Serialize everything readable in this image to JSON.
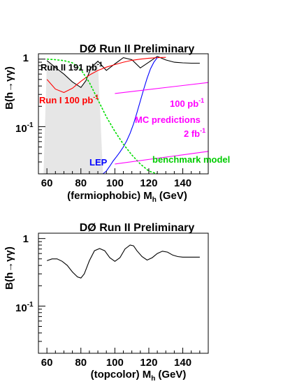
{
  "chart_data": [
    {
      "type": "line",
      "title": "DØ Run II Preliminary",
      "xlabel": "(fermiophobic) M",
      "xlabel_sub": "h",
      "xlabel_unit": "(GeV)",
      "ylabel": "B(h→γγ)",
      "xlim": [
        55,
        155
      ],
      "ylim": [
        0.02,
        1.2
      ],
      "yscale": "log",
      "xticks": [
        60,
        80,
        100,
        120,
        140
      ],
      "ytick_labels": [
        "1",
        "10",
        "-1"
      ],
      "grid": false,
      "series": [
        {
          "name": "Run II 191 pb",
          "name_sup": "-1",
          "color": "#000000",
          "x": [
            60,
            65,
            70,
            75,
            80,
            83,
            86,
            90,
            95,
            100,
            105,
            110,
            115,
            120,
            125,
            130,
            135,
            140,
            145,
            150
          ],
          "y": [
            0.95,
            0.75,
            0.6,
            0.46,
            0.38,
            0.48,
            0.75,
            0.93,
            0.68,
            0.85,
            1.05,
            0.98,
            0.74,
            0.9,
            1.1,
            0.97,
            0.9,
            0.88,
            0.87,
            0.87
          ]
        },
        {
          "name": "Run I 100 pb",
          "name_sup": "-1",
          "color": "#ff0000",
          "x": [
            60,
            65,
            70,
            75,
            80,
            85,
            90,
            95,
            100,
            105,
            110,
            115,
            120,
            125,
            130
          ],
          "y": [
            0.5,
            0.36,
            0.32,
            0.37,
            0.47,
            0.58,
            0.68,
            0.76,
            0.83,
            0.9,
            0.96,
            1.0,
            1.03,
            1.05,
            1.06
          ]
        },
        {
          "name": "LEP",
          "color": "#0000ff",
          "x": [
            93,
            95,
            97,
            99,
            101,
            103,
            105,
            107,
            109,
            111,
            113,
            115,
            117,
            119,
            121,
            123,
            125
          ],
          "y": [
            0.02,
            0.022,
            0.026,
            0.031,
            0.036,
            0.042,
            0.05,
            0.062,
            0.08,
            0.11,
            0.16,
            0.24,
            0.36,
            0.52,
            0.72,
            0.9,
            1.05
          ]
        },
        {
          "name": "benchmark model",
          "color": "#00dd00",
          "dashed": true,
          "x": [
            60,
            65,
            70,
            75,
            80,
            85,
            90,
            95,
            100,
            105,
            110,
            115,
            120,
            125
          ],
          "y": [
            1.0,
            0.98,
            0.95,
            0.88,
            0.7,
            0.45,
            0.25,
            0.14,
            0.085,
            0.055,
            0.038,
            0.028,
            0.022,
            0.02
          ]
        },
        {
          "name": "100 pb",
          "name_sup": "-1",
          "color": "#ff00ff",
          "x": [
            100,
            155
          ],
          "y": [
            0.31,
            0.45
          ]
        },
        {
          "name": "2 fb",
          "name_sup": "-1",
          "color": "#ff00ff",
          "x": [
            100,
            155
          ],
          "y": [
            0.028,
            0.043
          ]
        }
      ],
      "shaded_region": {
        "x": [
          58,
          93
        ],
        "color": "#e6e6e6"
      },
      "annotations": [
        "MC predictions"
      ]
    },
    {
      "type": "line",
      "title": "DØ Run II Preliminary",
      "xlabel": "(topcolor) M",
      "xlabel_sub": "h",
      "xlabel_unit": "(GeV)",
      "ylabel": "B(h→γγ)",
      "xlim": [
        55,
        155
      ],
      "ylim": [
        0.02,
        1.2
      ],
      "yscale": "log",
      "xticks": [
        60,
        80,
        100,
        120,
        140
      ],
      "ytick_labels": [
        "1",
        "10",
        "-1"
      ],
      "grid": false,
      "series": [
        {
          "color": "#000000",
          "x": [
            60,
            63,
            66,
            69,
            72,
            75,
            78,
            80,
            82,
            85,
            88,
            91,
            94,
            97,
            100,
            103,
            106,
            109,
            111,
            113,
            116,
            119,
            122,
            125,
            128,
            131,
            134,
            137,
            140,
            145,
            150
          ],
          "y": [
            0.47,
            0.5,
            0.5,
            0.46,
            0.4,
            0.32,
            0.27,
            0.26,
            0.3,
            0.47,
            0.66,
            0.71,
            0.66,
            0.52,
            0.46,
            0.52,
            0.7,
            0.8,
            0.78,
            0.66,
            0.54,
            0.48,
            0.52,
            0.6,
            0.65,
            0.63,
            0.57,
            0.54,
            0.53,
            0.53,
            0.53
          ]
        }
      ]
    }
  ]
}
